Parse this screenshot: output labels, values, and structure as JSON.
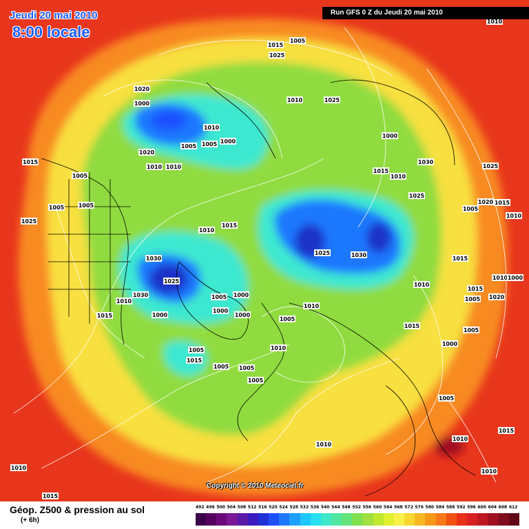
{
  "header": {
    "date": "Jeudi 20 mai 2010",
    "time": "8:00 locale",
    "run": "Run GFS 0 Z du Jeudi 20 mai 2010",
    "copyright": "Copyright © 2010 Meteociel.fr"
  },
  "footer": {
    "title": "Géop. Z500 & pression au sol",
    "subtitle": "(+ 6h)"
  },
  "legend": {
    "values": [
      "492",
      "496",
      "500",
      "504",
      "508",
      "512",
      "516",
      "520",
      "524",
      "528",
      "532",
      "536",
      "540",
      "544",
      "548",
      "552",
      "556",
      "560",
      "564",
      "568",
      "572",
      "576",
      "580",
      "584",
      "588",
      "592",
      "596",
      "600",
      "604",
      "608",
      "612"
    ],
    "colors": [
      "#3a004a",
      "#55005c",
      "#6a0a7a",
      "#7a1896",
      "#5a1aa8",
      "#3a1ac0",
      "#2030d8",
      "#1e50ff",
      "#1e78ff",
      "#1ea0ff",
      "#1ec8ff",
      "#28e0f0",
      "#3ce8c8",
      "#50e8a0",
      "#64e478",
      "#80e050",
      "#a0e040",
      "#c0e830",
      "#e0f030",
      "#f8f048",
      "#f8d830",
      "#f8b820",
      "#f89818",
      "#f87818",
      "#f05010",
      "#e83018",
      "#d82020",
      "#c01820",
      "#a01020",
      "#800c20",
      "#600818"
    ]
  },
  "colors": {
    "outer": "#e8361c",
    "orange": "#f88a20",
    "yellow": "#f8e040",
    "green": "#90dc40",
    "cyan": "#3ce8d0",
    "blue": "#1e78ff",
    "deep_blue": "#1a30c8"
  },
  "isobars": [
    {
      "label": "1010"
    },
    {
      "label": "1005"
    },
    {
      "label": "1015"
    },
    {
      "label": "1025"
    },
    {
      "label": "1020"
    },
    {
      "label": "1000"
    },
    {
      "label": "1010"
    },
    {
      "label": "1005"
    },
    {
      "label": "1000"
    },
    {
      "label": "1020"
    },
    {
      "label": "1025"
    },
    {
      "label": "1010"
    },
    {
      "label": "1000"
    },
    {
      "label": "1005"
    },
    {
      "label": "1010"
    },
    {
      "label": "1010"
    },
    {
      "label": "1015"
    },
    {
      "label": "1005"
    },
    {
      "label": "1015"
    },
    {
      "label": "1010"
    },
    {
      "label": "1030"
    },
    {
      "label": "1025"
    },
    {
      "label": "1015"
    },
    {
      "label": "1010"
    },
    {
      "label": "1005"
    },
    {
      "label": "1005"
    },
    {
      "label": "1025"
    },
    {
      "label": "1025"
    },
    {
      "label": "1020"
    },
    {
      "label": "1015"
    },
    {
      "label": "1010"
    },
    {
      "label": "1005"
    },
    {
      "label": "1015"
    },
    {
      "label": "1030"
    },
    {
      "label": "1025"
    },
    {
      "label": "1030"
    },
    {
      "label": "1025"
    },
    {
      "label": "1030"
    },
    {
      "label": "1010"
    },
    {
      "label": "1015"
    },
    {
      "label": "1000"
    },
    {
      "label": "1005"
    },
    {
      "label": "1000"
    },
    {
      "label": "1000"
    },
    {
      "label": "1000"
    },
    {
      "label": "1010"
    },
    {
      "label": "1005"
    },
    {
      "label": "1015"
    },
    {
      "label": "1000"
    },
    {
      "label": "1005"
    },
    {
      "label": "1010"
    },
    {
      "label": "1010"
    },
    {
      "label": "1015"
    },
    {
      "label": "1000"
    },
    {
      "label": "1020"
    },
    {
      "label": "1005"
    },
    {
      "label": "1005"
    },
    {
      "label": "1015"
    },
    {
      "label": "1005"
    },
    {
      "label": "1005"
    },
    {
      "label": "1005"
    },
    {
      "label": "1010"
    },
    {
      "label": "1005"
    },
    {
      "label": "1010"
    },
    {
      "label": "1015"
    },
    {
      "label": "1010"
    },
    {
      "label": "1010"
    },
    {
      "label": "1010"
    },
    {
      "label": "1015"
    }
  ]
}
